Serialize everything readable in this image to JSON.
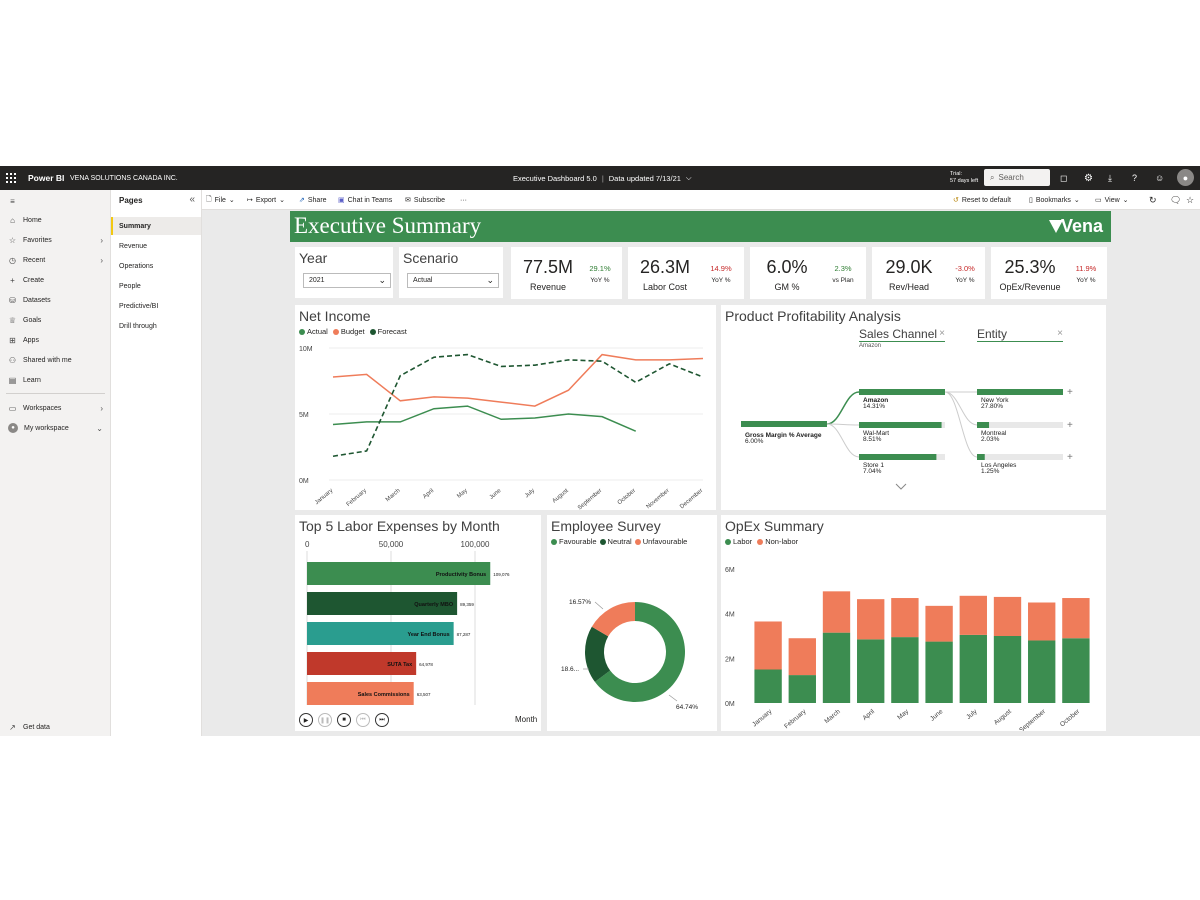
{
  "topbar": {
    "app": "Power BI",
    "org": "VENA SOLUTIONS CANADA INC.",
    "report_title": "Executive Dashboard 5.0",
    "data_updated": "Data updated 7/13/21",
    "trial_line1": "Trial:",
    "trial_line2": "57 days left",
    "search_placeholder": "Search"
  },
  "leftnav": {
    "items": [
      {
        "label": "Home",
        "icon": "home-icon"
      },
      {
        "label": "Favorites",
        "icon": "star-icon"
      },
      {
        "label": "Recent",
        "icon": "clock-icon"
      },
      {
        "label": "Create",
        "icon": "plus-icon"
      },
      {
        "label": "Datasets",
        "icon": "database-icon"
      },
      {
        "label": "Goals",
        "icon": "trophy-icon"
      },
      {
        "label": "Apps",
        "icon": "apps-icon"
      },
      {
        "label": "Shared with me",
        "icon": "share-icon"
      },
      {
        "label": "Learn",
        "icon": "book-icon"
      },
      {
        "label": "Workspaces",
        "icon": "workspaces-icon"
      },
      {
        "label": "My workspace",
        "icon": "user-icon"
      }
    ],
    "get_data": "Get data"
  },
  "pages": {
    "header": "Pages",
    "items": [
      "Summary",
      "Revenue",
      "Operations",
      "People",
      "Predictive/BI",
      "Drill through"
    ],
    "active": "Summary"
  },
  "toolbar": {
    "file": "File",
    "export": "Export",
    "share": "Share",
    "chat": "Chat in Teams",
    "subscribe": "Subscribe",
    "more": "···",
    "reset": "Reset to default",
    "bookmarks": "Bookmarks",
    "view": "View"
  },
  "report": {
    "title": "Executive Summary",
    "logo": "Vena",
    "year": {
      "label": "Year",
      "value": "2021"
    },
    "scenario": {
      "label": "Scenario",
      "value": "Actual"
    },
    "kpis": [
      {
        "value": "77.5M",
        "label": "Revenue",
        "change": "29.1%",
        "change_label": "YoY %",
        "color": "#2e7d32"
      },
      {
        "value": "26.3M",
        "label": "Labor Cost",
        "change": "14.9%",
        "change_label": "YoY %",
        "color": "#c62828"
      },
      {
        "value": "6.0%",
        "label": "GM %",
        "change": "2.3%",
        "change_label": "vs Plan",
        "color": "#2e7d32"
      },
      {
        "value": "29.0K",
        "label": "Rev/Head",
        "change": "-3.0%",
        "change_label": "YoY %",
        "color": "#c62828"
      },
      {
        "value": "25.3%",
        "label": "OpEx/Revenue",
        "change": "11.9%",
        "change_label": "YoY %",
        "color": "#c62828"
      }
    ]
  },
  "net_income": {
    "title": "Net Income",
    "chart_data": {
      "type": "line",
      "x": [
        "January",
        "February",
        "March",
        "April",
        "May",
        "June",
        "July",
        "August",
        "September",
        "October",
        "November",
        "December"
      ],
      "yticks": [
        "10M",
        "5M",
        "0M"
      ],
      "ylim": [
        0,
        10
      ],
      "series": [
        {
          "name": "Actual",
          "color": "#3c8d50",
          "values": [
            4.2,
            4.4,
            4.4,
            5.4,
            5.6,
            4.6,
            4.7,
            5.0,
            4.8,
            3.7,
            null,
            null
          ]
        },
        {
          "name": "Budget",
          "color": "#ef7c5a",
          "values": [
            7.8,
            8.0,
            6.0,
            6.3,
            6.2,
            5.9,
            5.6,
            6.8,
            9.5,
            9.1,
            9.1,
            9.2
          ]
        },
        {
          "name": "Forecast",
          "color": "#1e5631",
          "values": [
            1.8,
            2.2,
            7.9,
            9.3,
            9.5,
            8.6,
            8.7,
            9.1,
            9.0,
            7.4,
            8.8,
            7.8
          ]
        }
      ]
    }
  },
  "ppa": {
    "title": "Product Profitability Analysis",
    "sales_channel": "Sales Channel",
    "sales_channel_sub": "Amazon",
    "entity": "Entity",
    "close": "×",
    "root": {
      "label": "Gross Margin % Average",
      "value": "6.00%"
    },
    "channels": [
      {
        "label": "Amazon",
        "value": "14.31%"
      },
      {
        "label": "Wal-Mart",
        "value": "8.51%"
      },
      {
        "label": "Store 1",
        "value": "7.04%"
      }
    ],
    "entities": [
      {
        "label": "New York",
        "value": "27.80%"
      },
      {
        "label": "Montreal",
        "value": "2.03%"
      },
      {
        "label": "Los Angeles",
        "value": "1.25%"
      }
    ],
    "plus": "+"
  },
  "labor": {
    "title": "Top 5 Labor Expenses by Month",
    "month_label": "Month",
    "chart_data": {
      "type": "bar",
      "orientation": "horizontal",
      "xticks": [
        "0",
        "50,000",
        "100,000"
      ],
      "xlim": [
        0,
        100000
      ],
      "categories": [
        "Productivity Bonus",
        "Quarterly MBO",
        "Year End Bonus",
        "SUTA Tax",
        "Sales Commissions"
      ],
      "values": [
        109076,
        89359,
        87287,
        64978,
        63507
      ],
      "value_labels": [
        "109,076",
        "89,359",
        "87,287",
        "64,978",
        "63,507"
      ],
      "colors": [
        "#3c8d50",
        "#1e5631",
        "#2a9d8f",
        "#c0392b",
        "#ef7c5a"
      ]
    }
  },
  "survey": {
    "title": "Employee Survey",
    "chart_data": {
      "type": "pie",
      "categories": [
        "Favourable",
        "Neutral",
        "Unfavourable"
      ],
      "values": [
        64.74,
        18.6,
        16.57
      ],
      "labels": [
        "64.74%",
        "18.6...",
        "16.57%"
      ],
      "colors": [
        "#3c8d50",
        "#1e5631",
        "#ef7c5a"
      ]
    }
  },
  "opex": {
    "title": "OpEx Summary",
    "chart_data": {
      "type": "bar",
      "stacked": true,
      "categories": [
        "January",
        "February",
        "March",
        "April",
        "May",
        "June",
        "July",
        "August",
        "September",
        "October"
      ],
      "yticks": [
        "6M",
        "4M",
        "2M",
        "0M"
      ],
      "ylim": [
        0,
        6
      ],
      "series": [
        {
          "name": "Labor",
          "color": "#3c8d50",
          "values": [
            1.5,
            1.25,
            3.15,
            2.85,
            2.95,
            2.75,
            3.05,
            3.0,
            2.8,
            2.9
          ]
        },
        {
          "name": "Non-labor",
          "color": "#ef7c5a",
          "values": [
            2.15,
            1.65,
            1.85,
            1.8,
            1.75,
            1.6,
            1.75,
            1.75,
            1.7,
            1.8
          ]
        }
      ]
    }
  }
}
